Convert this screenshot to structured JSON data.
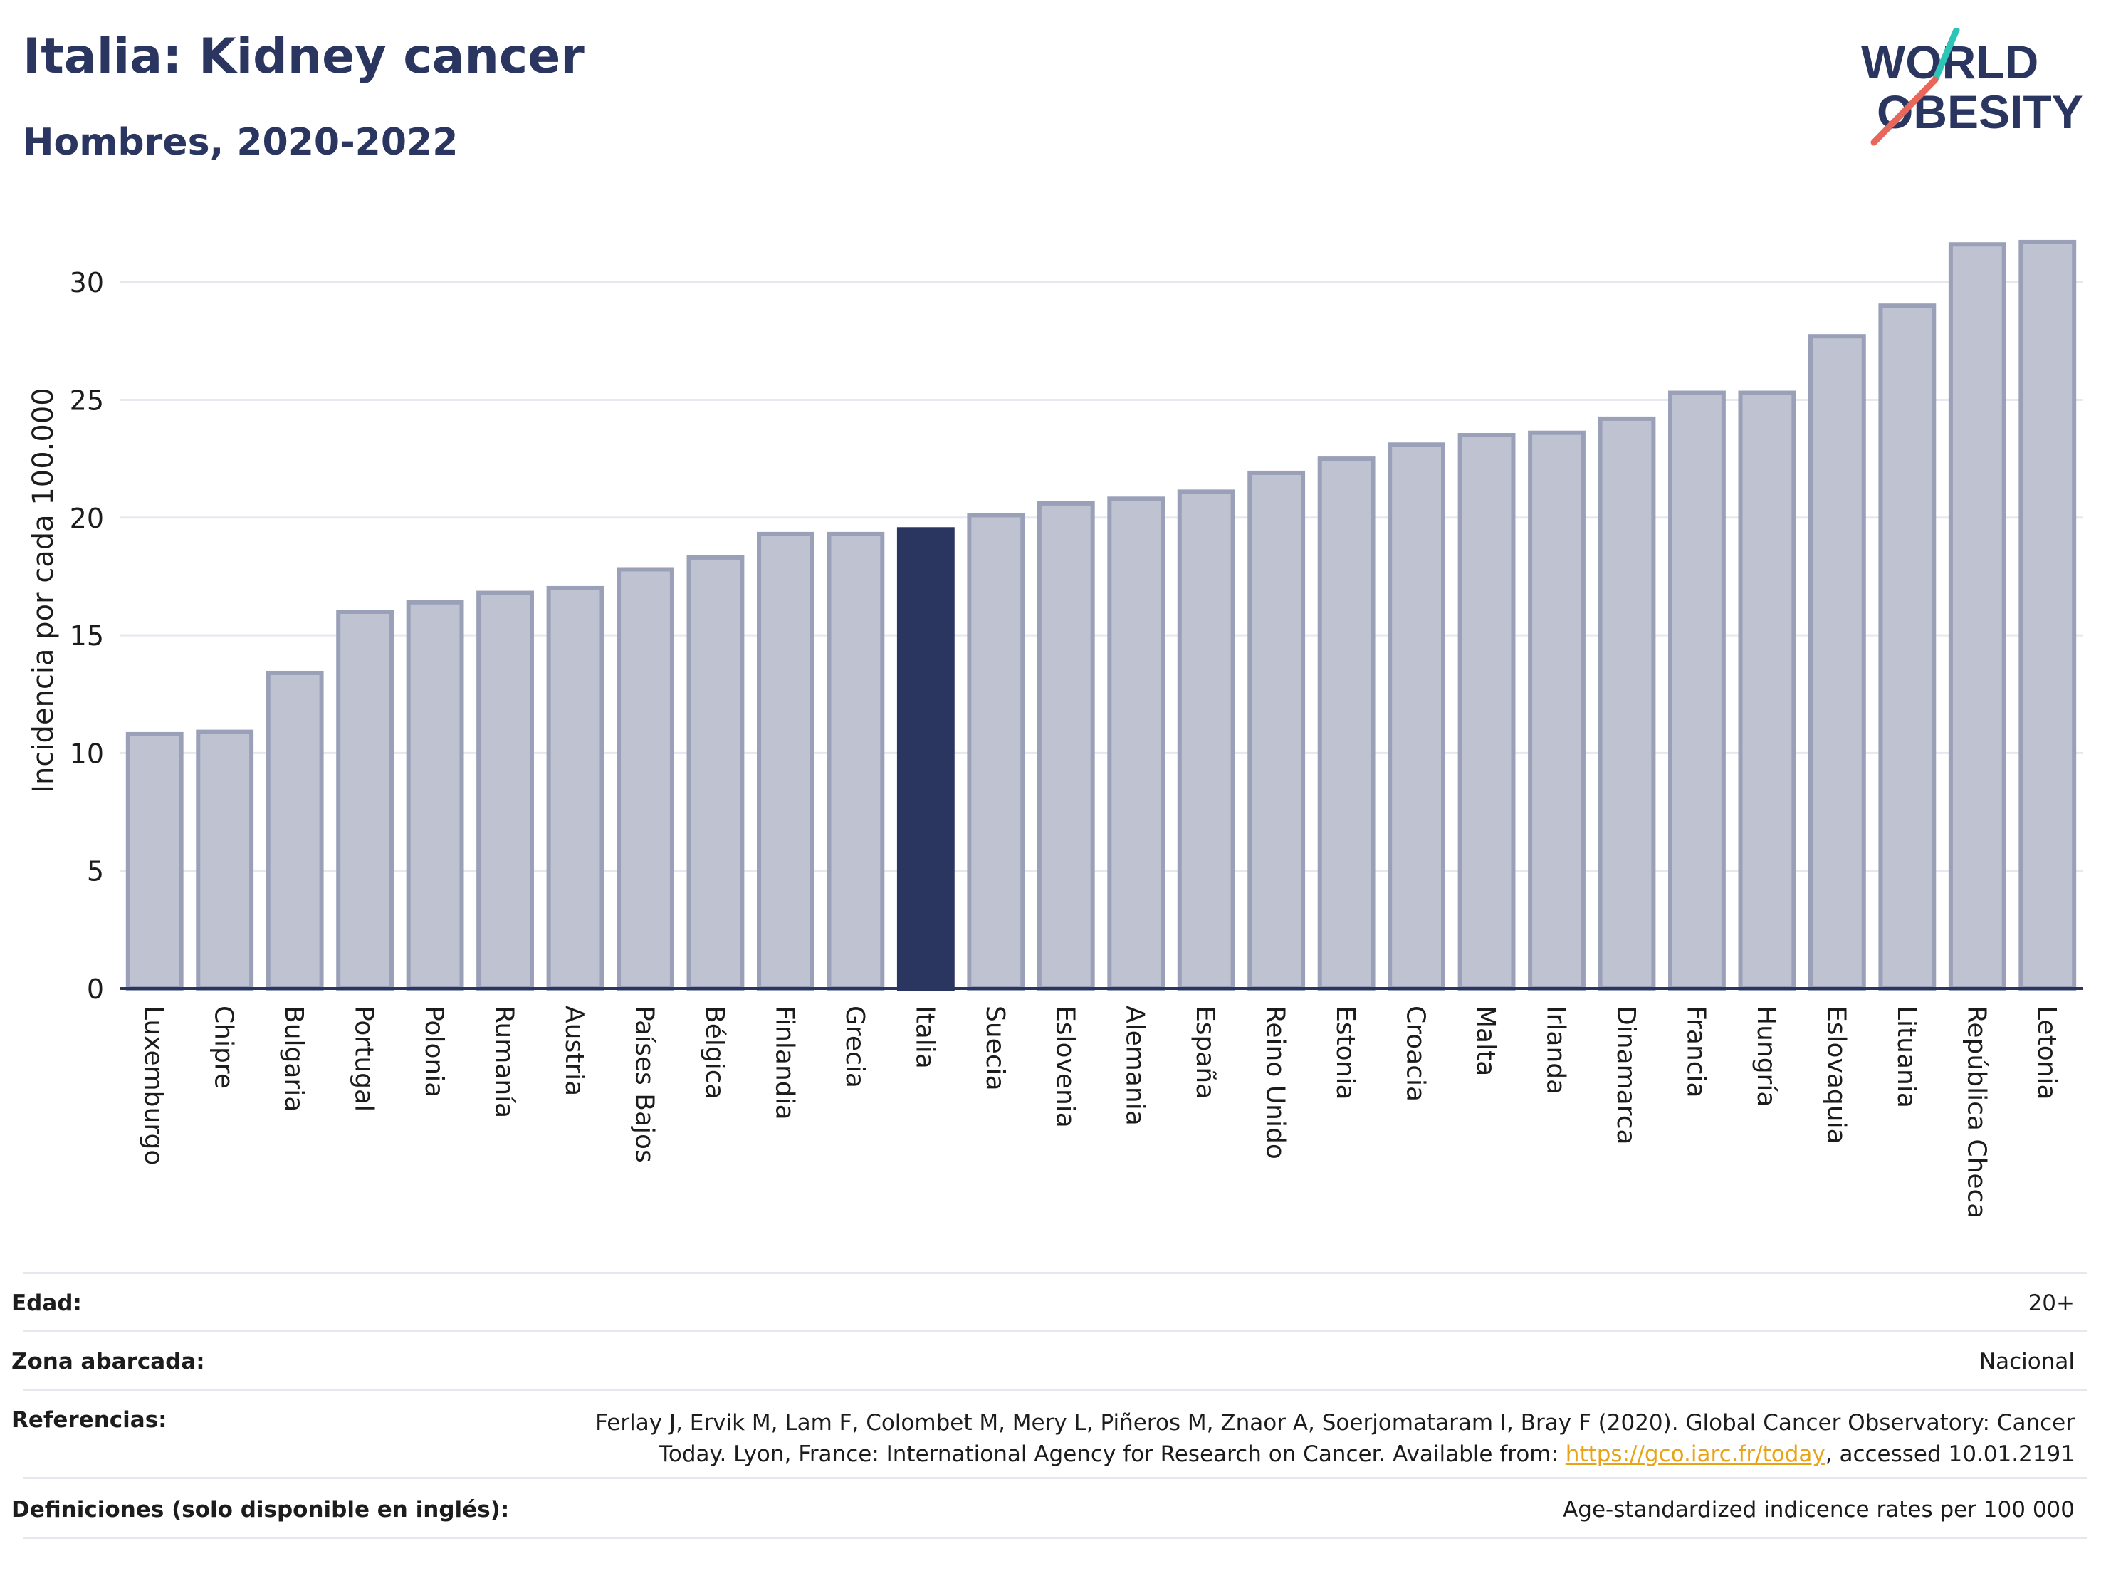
{
  "header": {
    "title": "Italia: Kidney cancer",
    "subtitle": "Hombres, 2020-2022"
  },
  "logo": {
    "line1": "WORLD",
    "line2": "OBESITY"
  },
  "colors": {
    "bar": "#bfc3d1",
    "bar_border": "#9aa0b8",
    "highlight": "#2a3560",
    "axis": "#2a3560",
    "grid": "#e6e8ef"
  },
  "chart_data": {
    "type": "bar",
    "ylabel": "Incidencia por cada 100.000",
    "xlabel": "",
    "ylim": [
      0,
      32
    ],
    "yticks": [
      0,
      5,
      10,
      15,
      20,
      25,
      30
    ],
    "grid": true,
    "highlight": "Italia",
    "categories": [
      "Luxemburgo",
      "Chipre",
      "Bulgaria",
      "Portugal",
      "Polonia",
      "Rumanía",
      "Austria",
      "Países Bajos",
      "Bélgica",
      "Finlandia",
      "Grecia",
      "Italia",
      "Suecia",
      "Eslovenia",
      "Alemania",
      "España",
      "Reino Unido",
      "Estonia",
      "Croacia",
      "Malta",
      "Irlanda",
      "Dinamarca",
      "Francia",
      "Hungría",
      "Eslovaquia",
      "Lituania",
      "República Checa",
      "Letonia"
    ],
    "values": [
      10.8,
      10.9,
      13.4,
      16.0,
      16.4,
      16.8,
      17.0,
      17.8,
      18.3,
      19.3,
      19.3,
      19.5,
      20.1,
      20.6,
      20.8,
      21.1,
      21.9,
      22.5,
      23.1,
      23.5,
      23.6,
      24.2,
      25.3,
      25.3,
      27.7,
      29.0,
      31.6,
      31.7
    ]
  },
  "info": {
    "edad_label": "Edad:",
    "edad_value": "20+",
    "zona_label": "Zona abarcada:",
    "zona_value": "Nacional",
    "ref_label": "Referencias:",
    "ref_line1": "Ferlay J, Ervik M, Lam F, Colombet M, Mery L, Piñeros M, Znaor A, Soerjomataram I, Bray F (2020). Global Cancer Observatory: Cancer",
    "ref_line2_pre": "Today. Lyon, France: International Agency for Research on Cancer. Available from: ",
    "ref_link": "https://gco.iarc.fr/today",
    "ref_line2_post": ", accessed 10.01.2191",
    "def_label": "Definiciones (solo disponible en inglés):",
    "def_value": "Age-standardized indicence rates per 100 000"
  }
}
